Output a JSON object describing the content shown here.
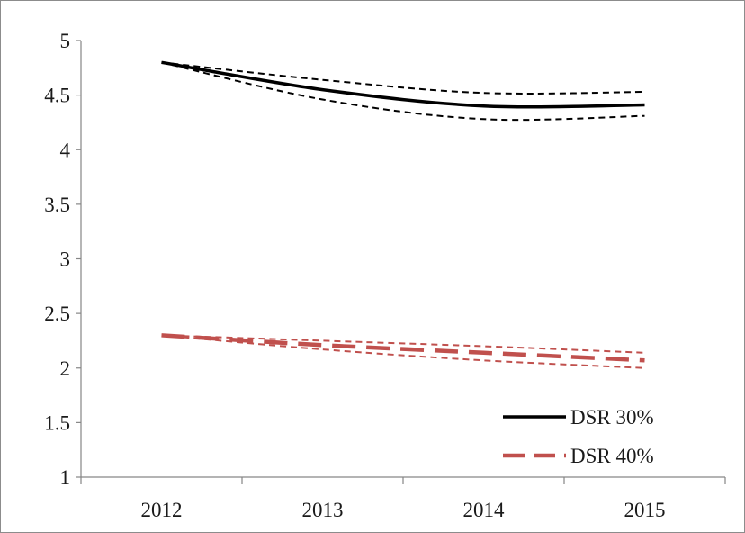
{
  "chart_data": {
    "type": "line",
    "title": "",
    "xlabel": "",
    "ylabel": "",
    "categories": [
      "2012",
      "2013",
      "2014",
      "2015"
    ],
    "ylim": [
      1,
      5
    ],
    "yticks": [
      "1",
      "1.5",
      "2",
      "2.5",
      "3",
      "3.5",
      "4",
      "4.5",
      "5"
    ],
    "grid": false,
    "legend_position": "bottom-right",
    "series": [
      {
        "name": "DSR 30%",
        "color": "#000000",
        "style": "solid",
        "values": [
          4.8,
          4.55,
          4.4,
          4.41
        ],
        "upper_band": [
          4.8,
          4.64,
          4.52,
          4.53
        ],
        "lower_band": [
          4.8,
          4.46,
          4.28,
          4.31
        ]
      },
      {
        "name": "DSR 40%",
        "color": "#c0504d",
        "style": "long-dash",
        "values": [
          2.3,
          2.21,
          2.14,
          2.07
        ],
        "upper_band": [
          2.3,
          2.25,
          2.2,
          2.14
        ],
        "lower_band": [
          2.3,
          2.17,
          2.07,
          2.0
        ]
      }
    ]
  }
}
